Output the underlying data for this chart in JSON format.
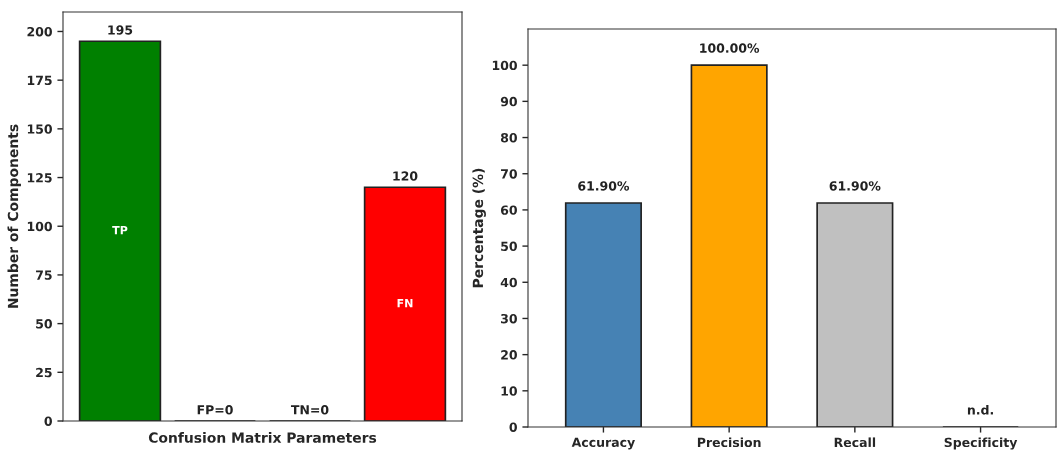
{
  "chart_data": [
    {
      "type": "bar",
      "xlabel": "Confusion Matrix Parameters",
      "ylabel": "Number of Components",
      "categories": [
        null,
        null,
        null,
        null
      ],
      "values": [
        195,
        0,
        0,
        120
      ],
      "colors": [
        "#008000",
        null,
        null,
        "#ff0000"
      ],
      "value_labels": [
        "195",
        "FP=0",
        "TN=0",
        "120"
      ],
      "annotations": [
        "TP",
        "FN"
      ],
      "ylim": [
        0,
        210
      ],
      "yticks": [
        0,
        25,
        50,
        75,
        100,
        125,
        150,
        175,
        200
      ],
      "tick_labels": "y",
      "grid": false
    },
    {
      "type": "bar",
      "ylabel": "Percentage (%)",
      "categories": [
        "Accuracy",
        "Precision",
        "Recall",
        "Specificity"
      ],
      "values": [
        61.9,
        100,
        61.9,
        0
      ],
      "colors": [
        "#4682b4",
        "#ffa500",
        "#c0c0c0",
        null
      ],
      "value_labels": [
        "61.90%",
        "100.00%",
        "61.90%",
        "n.d."
      ],
      "ylim": [
        0,
        110
      ],
      "yticks": [
        0,
        10,
        20,
        30,
        40,
        50,
        60,
        70,
        80,
        90,
        100
      ],
      "grid": false
    }
  ]
}
